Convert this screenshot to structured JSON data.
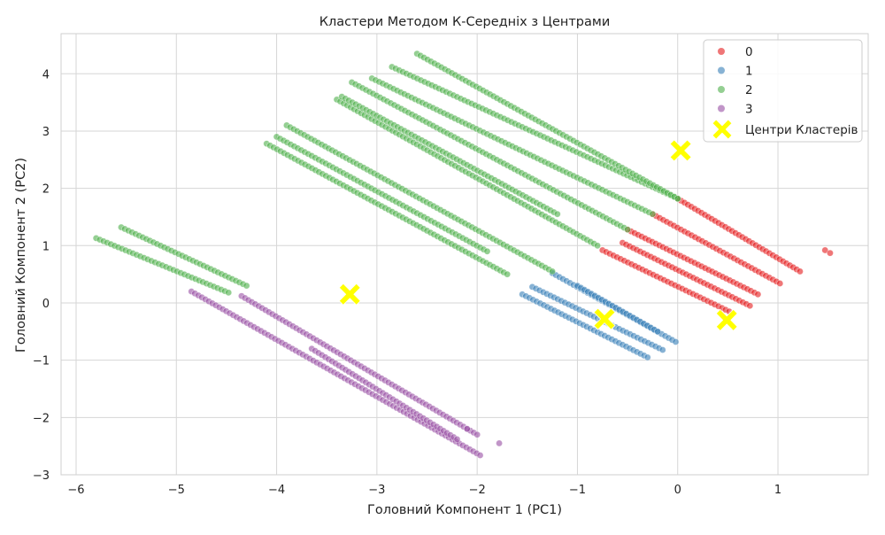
{
  "chart_data": {
    "type": "scatter",
    "title": "Кластери Методом К-Середніх з Центрами",
    "xlabel": "Головний Компонент 1 (PC1)",
    "ylabel": "Головний Компонент 2 (PC2)",
    "xlim": [
      -6.15,
      1.9
    ],
    "ylim": [
      -3.0,
      4.7
    ],
    "xticks": [
      -6,
      -5,
      -4,
      -3,
      -2,
      -1,
      0,
      1
    ],
    "yticks": [
      -3,
      -2,
      -1,
      0,
      1,
      2,
      3,
      4
    ],
    "grid": true,
    "legend_position": "top-right",
    "series": [
      {
        "name": "0",
        "color": "#e41a1c",
        "segments": [
          {
            "from": [
              0.0,
              1.82
            ],
            "to": [
              1.22,
              0.55
            ]
          },
          {
            "from": [
              -0.25,
              1.55
            ],
            "to": [
              1.02,
              0.34
            ]
          },
          {
            "from": [
              -0.5,
              1.28
            ],
            "to": [
              0.8,
              0.15
            ]
          },
          {
            "from": [
              -0.75,
              0.92
            ],
            "to": [
              0.55,
              -0.18
            ]
          },
          {
            "from": [
              -0.55,
              1.05
            ],
            "to": [
              0.72,
              -0.05
            ]
          }
        ],
        "points": [
          [
            1.47,
            0.92
          ],
          [
            1.52,
            0.87
          ]
        ]
      },
      {
        "name": "1",
        "color": "#377eb8",
        "segments": [
          {
            "from": [
              -1.25,
              0.52
            ],
            "to": [
              -0.02,
              -0.68
            ]
          },
          {
            "from": [
              -1.45,
              0.28
            ],
            "to": [
              -0.15,
              -0.82
            ]
          },
          {
            "from": [
              -1.55,
              0.15
            ],
            "to": [
              -0.3,
              -0.95
            ]
          },
          {
            "from": [
              -1.0,
              0.3
            ],
            "to": [
              -0.2,
              -0.5
            ]
          }
        ],
        "points": []
      },
      {
        "name": "2",
        "color": "#4daf4a",
        "segments": [
          {
            "from": [
              -5.8,
              1.13
            ],
            "to": [
              -4.48,
              0.18
            ]
          },
          {
            "from": [
              -5.55,
              1.32
            ],
            "to": [
              -4.3,
              0.3
            ]
          },
          {
            "from": [
              -4.1,
              2.78
            ],
            "to": [
              -1.7,
              0.5
            ]
          },
          {
            "from": [
              -3.9,
              3.1
            ],
            "to": [
              -1.25,
              0.55
            ]
          },
          {
            "from": [
              -3.4,
              3.55
            ],
            "to": [
              -0.8,
              1.0
            ]
          },
          {
            "from": [
              -3.25,
              3.85
            ],
            "to": [
              -0.5,
              1.28
            ]
          },
          {
            "from": [
              -3.05,
              3.92
            ],
            "to": [
              -0.25,
              1.55
            ]
          },
          {
            "from": [
              -2.85,
              4.12
            ],
            "to": [
              -0.0,
              1.82
            ]
          },
          {
            "from": [
              -2.6,
              4.35
            ],
            "to": [
              0.0,
              1.82
            ]
          },
          {
            "from": [
              -4.0,
              2.9
            ],
            "to": [
              -1.9,
              0.9
            ]
          },
          {
            "from": [
              -3.35,
              3.6
            ],
            "to": [
              -1.2,
              1.55
            ]
          }
        ],
        "points": []
      },
      {
        "name": "3",
        "color": "#984ea3",
        "segments": [
          {
            "from": [
              -4.85,
              0.2
            ],
            "to": [
              -1.97,
              -2.66
            ]
          },
          {
            "from": [
              -4.35,
              0.12
            ],
            "to": [
              -2.0,
              -2.3
            ]
          },
          {
            "from": [
              -3.65,
              -0.8
            ],
            "to": [
              -2.2,
              -2.38
            ]
          }
        ],
        "points": [
          [
            -1.78,
            -2.45
          ],
          [
            -2.1,
            -2.2
          ]
        ]
      }
    ],
    "centers": {
      "name": "Центри Кластерів",
      "color": "#ffff00",
      "points": [
        [
          0.03,
          2.66
        ],
        [
          -3.27,
          0.15
        ],
        [
          -0.73,
          -0.28
        ],
        [
          0.49,
          -0.3
        ]
      ]
    }
  }
}
